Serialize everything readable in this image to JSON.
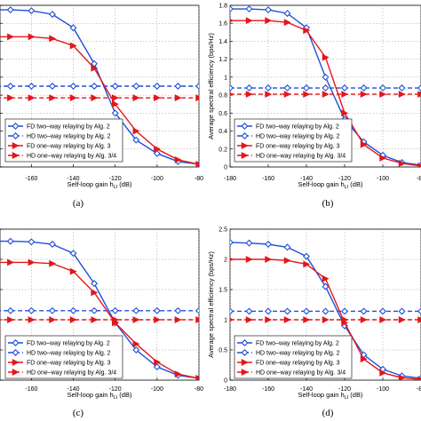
{
  "chart_data": [
    {
      "panel": "a",
      "type": "line",
      "caption": "(a)",
      "xlabel": "Self-loop gain h",
      "xlabel_sub": "LI",
      "xlabel_unit": "(dB)",
      "ylabel": "",
      "xlim": [
        -175,
        -80
      ],
      "ylim": [
        0,
        1.8
      ],
      "xticks": [
        -160,
        -140,
        -120,
        -100,
        -80
      ],
      "yticks": [],
      "grid": true,
      "legend_position": "bottom-left",
      "x": [
        -180,
        -170,
        -160,
        -150,
        -140,
        -130,
        -120,
        -110,
        -100,
        -90,
        -80
      ],
      "series": [
        {
          "name": "FD two–way relaying by Alg. 2",
          "color": "#1f4fd8",
          "dash": "solid",
          "marker": "diamond",
          "values": [
            1.75,
            1.75,
            1.74,
            1.7,
            1.55,
            1.15,
            0.6,
            0.3,
            0.15,
            0.06,
            0.03
          ]
        },
        {
          "name": "HD two–way relaying by Alg. 2",
          "color": "#1f4fd8",
          "dash": "dashed",
          "marker": "diamond",
          "values": [
            0.9,
            0.9,
            0.9,
            0.9,
            0.9,
            0.9,
            0.9,
            0.9,
            0.9,
            0.9,
            0.9
          ]
        },
        {
          "name": "FD one–way relaying by Alg. 3",
          "color": "#e3161b",
          "dash": "solid",
          "marker": "triangle-right",
          "values": [
            1.45,
            1.45,
            1.45,
            1.43,
            1.35,
            1.1,
            0.7,
            0.4,
            0.2,
            0.08,
            0.03
          ]
        },
        {
          "name": "HD one–way relaying by Alg. 3/4",
          "color": "#e3161b",
          "dash": "dashed",
          "marker": "triangle-right",
          "values": [
            0.77,
            0.77,
            0.77,
            0.77,
            0.77,
            0.77,
            0.77,
            0.77,
            0.77,
            0.77,
            0.77
          ]
        }
      ]
    },
    {
      "panel": "b",
      "type": "line",
      "caption": "(b)",
      "xlabel": "Self-loop gain h",
      "xlabel_sub": "LI",
      "xlabel_unit": "(dB)",
      "ylabel": "Average spectral efficiency (bps/Hz)",
      "xlim": [
        -180,
        -80
      ],
      "ylim": [
        0,
        1.8
      ],
      "xticks": [
        -180,
        -160,
        -140,
        -120,
        -100,
        -80
      ],
      "yticks": [
        0,
        0.2,
        0.4,
        0.6,
        0.8,
        1,
        1.2,
        1.4,
        1.6,
        1.8
      ],
      "grid": true,
      "legend_position": "bottom-left",
      "x": [
        -180,
        -170,
        -160,
        -150,
        -140,
        -130,
        -120,
        -110,
        -100,
        -90,
        -80
      ],
      "series": [
        {
          "name": "FD two–way relaying by Alg. 2",
          "color": "#1f4fd8",
          "dash": "solid",
          "marker": "diamond",
          "values": [
            1.76,
            1.76,
            1.75,
            1.71,
            1.55,
            1.0,
            0.53,
            0.28,
            0.13,
            0.05,
            0.02
          ]
        },
        {
          "name": "HD two–way relaying by Alg. 2",
          "color": "#1f4fd8",
          "dash": "dashed",
          "marker": "diamond",
          "values": [
            0.88,
            0.88,
            0.88,
            0.88,
            0.88,
            0.88,
            0.88,
            0.88,
            0.88,
            0.88,
            0.88
          ]
        },
        {
          "name": "FD one–way relaying by Alg. 3",
          "color": "#e3161b",
          "dash": "solid",
          "marker": "triangle-right",
          "values": [
            1.63,
            1.63,
            1.63,
            1.61,
            1.52,
            1.22,
            0.6,
            0.25,
            0.1,
            0.04,
            0.01
          ]
        },
        {
          "name": "HD one–way relaying by Alg. 3/4",
          "color": "#e3161b",
          "dash": "dashed",
          "marker": "triangle-right",
          "values": [
            0.81,
            0.81,
            0.81,
            0.81,
            0.81,
            0.81,
            0.81,
            0.81,
            0.81,
            0.81,
            0.81
          ]
        }
      ]
    },
    {
      "panel": "c",
      "type": "line",
      "caption": "(c)",
      "xlabel": "Self-loop gain h",
      "xlabel_sub": "LI",
      "xlabel_unit": "(dB)",
      "ylabel": "",
      "xlim": [
        -175,
        -80
      ],
      "ylim": [
        0,
        2.5
      ],
      "xticks": [
        -160,
        -140,
        -120,
        -100,
        -80
      ],
      "yticks": [],
      "grid": true,
      "legend_position": "bottom-left",
      "x": [
        -180,
        -170,
        -160,
        -150,
        -140,
        -130,
        -120,
        -110,
        -100,
        -90,
        -80
      ],
      "series": [
        {
          "name": "FD two–way relaying by Alg. 2",
          "color": "#1f4fd8",
          "dash": "solid",
          "marker": "diamond",
          "values": [
            2.3,
            2.3,
            2.29,
            2.25,
            2.1,
            1.6,
            0.95,
            0.5,
            0.22,
            0.08,
            0.03
          ]
        },
        {
          "name": "HD two–way relaying by Alg. 2",
          "color": "#1f4fd8",
          "dash": "dashed",
          "marker": "diamond",
          "values": [
            1.15,
            1.15,
            1.15,
            1.15,
            1.15,
            1.15,
            1.15,
            1.15,
            1.15,
            1.15,
            1.15
          ]
        },
        {
          "name": "FD one–way relaying by Alg. 3",
          "color": "#e3161b",
          "dash": "solid",
          "marker": "triangle-right",
          "values": [
            1.95,
            1.95,
            1.95,
            1.93,
            1.8,
            1.45,
            0.95,
            0.6,
            0.3,
            0.1,
            0.03
          ]
        },
        {
          "name": "HD one–way relaying by Alg. 3/4",
          "color": "#e3161b",
          "dash": "dashed",
          "marker": "triangle-right",
          "values": [
            1.0,
            1.0,
            1.0,
            1.0,
            1.0,
            1.0,
            1.0,
            1.0,
            1.0,
            1.0,
            1.0
          ]
        }
      ]
    },
    {
      "panel": "d",
      "type": "line",
      "caption": "(d)",
      "xlabel": "Self-loop gain h",
      "xlabel_sub": "LI",
      "xlabel_unit": "(dB)",
      "ylabel": "Average spectral efficiency (bps/Hz)",
      "xlim": [
        -180,
        -80
      ],
      "ylim": [
        0,
        2.5
      ],
      "xticks": [
        -180,
        -160,
        -140,
        -120,
        -100,
        -80
      ],
      "yticks": [
        0,
        0.5,
        1,
        1.5,
        2,
        2.5
      ],
      "grid": true,
      "legend_position": "bottom-left",
      "x": [
        -180,
        -170,
        -160,
        -150,
        -140,
        -130,
        -120,
        -110,
        -100,
        -90,
        -80
      ],
      "series": [
        {
          "name": "FD two–way relaying by Alg. 2",
          "color": "#1f4fd8",
          "dash": "solid",
          "marker": "diamond",
          "values": [
            2.28,
            2.27,
            2.25,
            2.2,
            2.05,
            1.55,
            0.9,
            0.42,
            0.18,
            0.07,
            0.03
          ]
        },
        {
          "name": "HD two–way relaying by Alg. 2",
          "color": "#1f4fd8",
          "dash": "dashed",
          "marker": "diamond",
          "values": [
            1.14,
            1.14,
            1.14,
            1.14,
            1.14,
            1.14,
            1.14,
            1.14,
            1.14,
            1.14,
            1.14
          ]
        },
        {
          "name": "FD one–way relaying by Alg. 3",
          "color": "#e3161b",
          "dash": "solid",
          "marker": "triangle-right",
          "values": [
            2.0,
            2.0,
            2.0,
            1.98,
            1.92,
            1.68,
            0.95,
            0.35,
            0.12,
            0.04,
            0.01
          ]
        },
        {
          "name": "HD one–way relaying by Alg. 3/4",
          "color": "#e3161b",
          "dash": "dashed",
          "marker": "triangle-right",
          "values": [
            1.0,
            1.0,
            1.0,
            1.0,
            1.0,
            1.0,
            1.0,
            1.0,
            1.0,
            1.0,
            1.0
          ]
        }
      ]
    }
  ]
}
